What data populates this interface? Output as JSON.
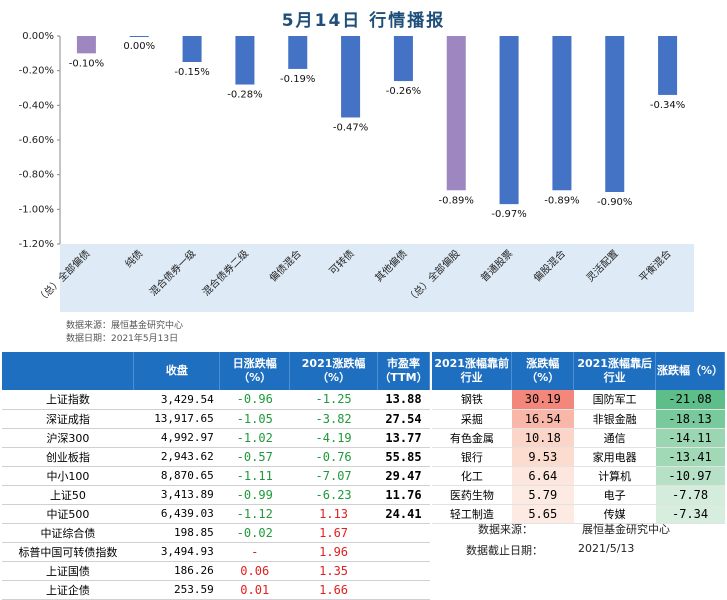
{
  "title": "5月14日  行情播报",
  "chart_data": {
    "type": "bar",
    "categories": [
      "（总）全部偏债",
      "纯债",
      "混合债券一级",
      "混合债券二级",
      "偏债混合",
      "可转债",
      "其他偏债",
      "（总）全部偏股",
      "普通股票",
      "偏股混合",
      "灵活配置",
      "平衡混合"
    ],
    "values": [
      -0.1,
      0.0,
      -0.15,
      -0.28,
      -0.19,
      -0.47,
      -0.26,
      -0.89,
      -0.97,
      -0.89,
      -0.9,
      -0.34
    ],
    "value_labels": [
      "-0.10%",
      "0.00%",
      "-0.15%",
      "-0.28%",
      "-0.19%",
      "-0.47%",
      "-0.26%",
      "-0.89%",
      "-0.97%",
      "-0.89%",
      "-0.90%",
      "-0.34%"
    ],
    "highlight": [
      true,
      false,
      false,
      false,
      false,
      false,
      false,
      true,
      false,
      false,
      false,
      false
    ],
    "ylim": [
      -1.2,
      0.0
    ],
    "yticks": [
      "0.00%",
      "-0.20%",
      "-0.40%",
      "-0.60%",
      "-0.80%",
      "-1.00%",
      "-1.20%"
    ],
    "ytick_values": [
      0,
      -0.2,
      -0.4,
      -0.6,
      -0.8,
      -1.0,
      -1.2
    ],
    "colors": {
      "bar": "#4472c4",
      "highlight": "#9e87c0",
      "plot_bg": "#ffffff",
      "panel_bg": "#deebf7"
    }
  },
  "notes": {
    "source": "数据来源：展恒基金研究中心",
    "date": "数据日期：2021年5月13日"
  },
  "left_table": {
    "headers": [
      "",
      "收盘",
      "日涨跌幅\n（%）",
      "2021涨跌幅\n（%）",
      "市盈率\n（TTM）"
    ],
    "rows": [
      {
        "name": "上证指数",
        "close": "3,429.54",
        "day": "-0.96",
        "ytd": "-1.25",
        "pe": "13.88",
        "day_sign": "neg",
        "ytd_sign": "neg"
      },
      {
        "name": "深证成指",
        "close": "13,917.65",
        "day": "-1.05",
        "ytd": "-3.82",
        "pe": "27.54",
        "day_sign": "neg",
        "ytd_sign": "neg"
      },
      {
        "name": "沪深300",
        "close": "4,992.97",
        "day": "-1.02",
        "ytd": "-4.19",
        "pe": "13.77",
        "day_sign": "neg",
        "ytd_sign": "neg"
      },
      {
        "name": "创业板指",
        "close": "2,943.62",
        "day": "-0.57",
        "ytd": "-0.76",
        "pe": "55.85",
        "day_sign": "neg",
        "ytd_sign": "neg"
      },
      {
        "name": "中小100",
        "close": "8,870.65",
        "day": "-1.11",
        "ytd": "-7.07",
        "pe": "29.47",
        "day_sign": "neg",
        "ytd_sign": "neg"
      },
      {
        "name": "上证50",
        "close": "3,413.89",
        "day": "-0.99",
        "ytd": "-6.23",
        "pe": "11.76",
        "day_sign": "neg",
        "ytd_sign": "neg"
      },
      {
        "name": "中证500",
        "close": "6,439.03",
        "day": "-1.12",
        "ytd": "1.13",
        "pe": "24.41",
        "day_sign": "neg",
        "ytd_sign": "pos"
      },
      {
        "name": "中证综合债",
        "close": "198.85",
        "day": "-0.02",
        "ytd": "1.67",
        "pe": "",
        "day_sign": "neg",
        "ytd_sign": "pos"
      },
      {
        "name": "标普中国可转债指数",
        "close": "3,494.93",
        "day": "-",
        "ytd": "1.96",
        "pe": "",
        "day_sign": "pos",
        "ytd_sign": "pos"
      },
      {
        "name": "上证国债",
        "close": "186.26",
        "day": "0.06",
        "ytd": "1.35",
        "pe": "",
        "day_sign": "pos",
        "ytd_sign": "pos"
      },
      {
        "name": "上证企债",
        "close": "253.59",
        "day": "0.01",
        "ytd": "1.66",
        "pe": "",
        "day_sign": "pos",
        "ytd_sign": "pos"
      }
    ]
  },
  "right_table": {
    "headers": [
      "2021涨幅靠前\n行业",
      "涨跌幅\n（%）",
      "2021涨幅靠后\n行业",
      "涨跌幅（%）"
    ],
    "rows": [
      {
        "top": "钢铁",
        "top_val": "30.19",
        "top_bg": "#f4877c",
        "bot": "国防军工",
        "bot_val": "-21.08",
        "bot_bg": "#5dbe8a"
      },
      {
        "top": "采掘",
        "top_val": "16.54",
        "top_bg": "#f8b7a8",
        "bot": "非银金融",
        "bot_val": "-18.13",
        "bot_bg": "#78c99b"
      },
      {
        "top": "有色金属",
        "top_val": "10.18",
        "top_bg": "#fbd5c8",
        "bot": "通信",
        "bot_val": "-14.11",
        "bot_bg": "#9ad6b2"
      },
      {
        "top": "银行",
        "top_val": "9.53",
        "top_bg": "#fcdccf",
        "bot": "家用电器",
        "bot_val": "-13.41",
        "bot_bg": "#a1d9b7"
      },
      {
        "top": "化工",
        "top_val": "6.64",
        "top_bg": "#fde6dd",
        "bot": "计算机",
        "bot_val": "-10.97",
        "bot_bg": "#b7e1c7"
      },
      {
        "top": "医药生物",
        "top_val": "5.79",
        "top_bg": "#fdeae2",
        "bot": "电子",
        "bot_val": "-7.78",
        "bot_bg": "#d3ecdc"
      },
      {
        "top": "轻工制造",
        "top_val": "5.65",
        "top_bg": "#fdebe3",
        "bot": "传媒",
        "bot_val": "-7.34",
        "bot_bg": "#d7eedf"
      }
    ],
    "source_label": "数据来源：",
    "source_value": "展恒基金研究中心",
    "date_label": "数据截止日期：",
    "date_value": "2021/5/13"
  }
}
